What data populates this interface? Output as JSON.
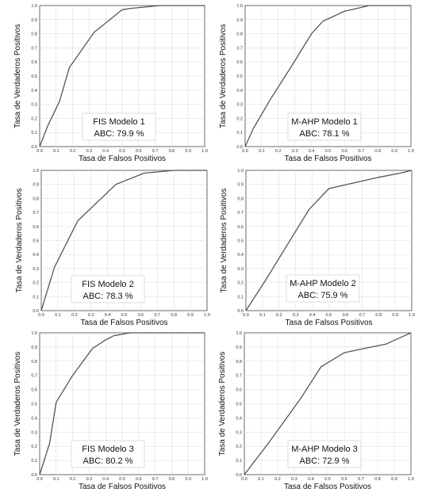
{
  "chart_data": [
    {
      "type": "line",
      "legend": {
        "title": "FIS Modelo 1",
        "value": "ABC: 79.9 %"
      },
      "xlabel": "Tasa de Falsos Positivos",
      "ylabel": "Tasa de Verdaderos Positivos",
      "xlim": [
        0,
        1
      ],
      "ylim": [
        0,
        1
      ],
      "grid": true,
      "ticks": [
        "0.0",
        "0.1",
        "0.2",
        "0.3",
        "0.4",
        "0.5",
        "0.6",
        "0.7",
        "0.8",
        "0.9",
        "1.0"
      ],
      "x": [
        0,
        0.05,
        0.12,
        0.18,
        0.33,
        0.5,
        0.55,
        0.73,
        1.0
      ],
      "y": [
        0,
        0.15,
        0.32,
        0.56,
        0.81,
        0.97,
        0.98,
        1.0,
        1.0
      ]
    },
    {
      "type": "line",
      "legend": {
        "title": "M-AHP Modelo 1",
        "value": "ABC: 78.1 %"
      },
      "xlabel": "Tasa de Falsos Positivos",
      "ylabel": "Tasa de Verdaderos Positivos",
      "xlim": [
        0,
        1
      ],
      "ylim": [
        0,
        1
      ],
      "grid": true,
      "ticks": [
        "0.0",
        "0.1",
        "0.2",
        "0.3",
        "0.4",
        "0.5",
        "0.6",
        "0.7",
        "0.8",
        "0.9",
        "1.0"
      ],
      "x": [
        0,
        0.05,
        0.15,
        0.28,
        0.4,
        0.47,
        0.6,
        0.75,
        1.0
      ],
      "y": [
        0,
        0.13,
        0.33,
        0.57,
        0.8,
        0.89,
        0.96,
        1.0,
        1.0
      ]
    },
    {
      "type": "line",
      "legend": {
        "title": "FIS Modelo 2",
        "value": "ABC: 78.3 %"
      },
      "xlabel": "Tasa de Falsos Positivos",
      "ylabel": "Tasa de Verdaderos Positivos",
      "xlim": [
        0,
        1
      ],
      "ylim": [
        0,
        1
      ],
      "grid": true,
      "ticks": [
        "0.0",
        "0.1",
        "0.2",
        "0.3",
        "0.4",
        "0.5",
        "0.6",
        "0.7",
        "0.8",
        "0.9",
        "1.0"
      ],
      "x": [
        0,
        0.08,
        0.22,
        0.45,
        0.62,
        0.8,
        1.0
      ],
      "y": [
        0,
        0.31,
        0.64,
        0.9,
        0.98,
        1.0,
        1.0
      ]
    },
    {
      "type": "line",
      "legend": {
        "title": "M-AHP Modelo 2",
        "value": "ABC: 75.9 %"
      },
      "xlabel": "Tasa de Falsos Positivos",
      "ylabel": "Tasa de Verdaderos Positivos",
      "xlim": [
        0,
        1
      ],
      "ylim": [
        0,
        1
      ],
      "grid": true,
      "ticks": [
        "0.0",
        "0.1",
        "0.2",
        "0.3",
        "0.4",
        "0.5",
        "0.6",
        "0.7",
        "0.8",
        "0.9",
        "1.0"
      ],
      "x": [
        0,
        0.12,
        0.25,
        0.38,
        0.5,
        0.65,
        0.8,
        0.93,
        1.0
      ],
      "y": [
        0,
        0.22,
        0.47,
        0.72,
        0.87,
        0.91,
        0.95,
        0.98,
        1.0
      ]
    },
    {
      "type": "line",
      "legend": {
        "title": "FIS Modelo 3",
        "value": "ABC: 80.2 %"
      },
      "xlabel": "Tasa de Falsos Positivos",
      "ylabel": "Tasa de Verdaderos Positivos",
      "xlim": [
        0,
        1
      ],
      "ylim": [
        0,
        1
      ],
      "grid": true,
      "ticks": [
        "0.0",
        "0.1",
        "0.2",
        "0.3",
        "0.4",
        "0.5",
        "0.6",
        "0.7",
        "0.8",
        "0.9",
        "1.0"
      ],
      "x": [
        0,
        0.06,
        0.1,
        0.2,
        0.32,
        0.4,
        0.45,
        0.55,
        1.0
      ],
      "y": [
        0,
        0.22,
        0.51,
        0.7,
        0.89,
        0.95,
        0.98,
        1.0,
        1.0
      ]
    },
    {
      "type": "line",
      "legend": {
        "title": "M-AHP Modelo 3",
        "value": "ABC: 72.9 %"
      },
      "xlabel": "Tasa de Falsos Positivos",
      "ylabel": "Tasa de Verdaderos Positivos",
      "xlim": [
        0,
        1
      ],
      "ylim": [
        0,
        1
      ],
      "grid": true,
      "ticks": [
        "0.0",
        "0.1",
        "0.2",
        "0.3",
        "0.4",
        "0.5",
        "0.6",
        "0.7",
        "0.8",
        "0.9",
        "1.0"
      ],
      "x": [
        0,
        0.15,
        0.34,
        0.46,
        0.6,
        0.72,
        0.85,
        1.0
      ],
      "y": [
        0,
        0.23,
        0.54,
        0.76,
        0.86,
        0.89,
        0.92,
        1.0
      ]
    }
  ]
}
